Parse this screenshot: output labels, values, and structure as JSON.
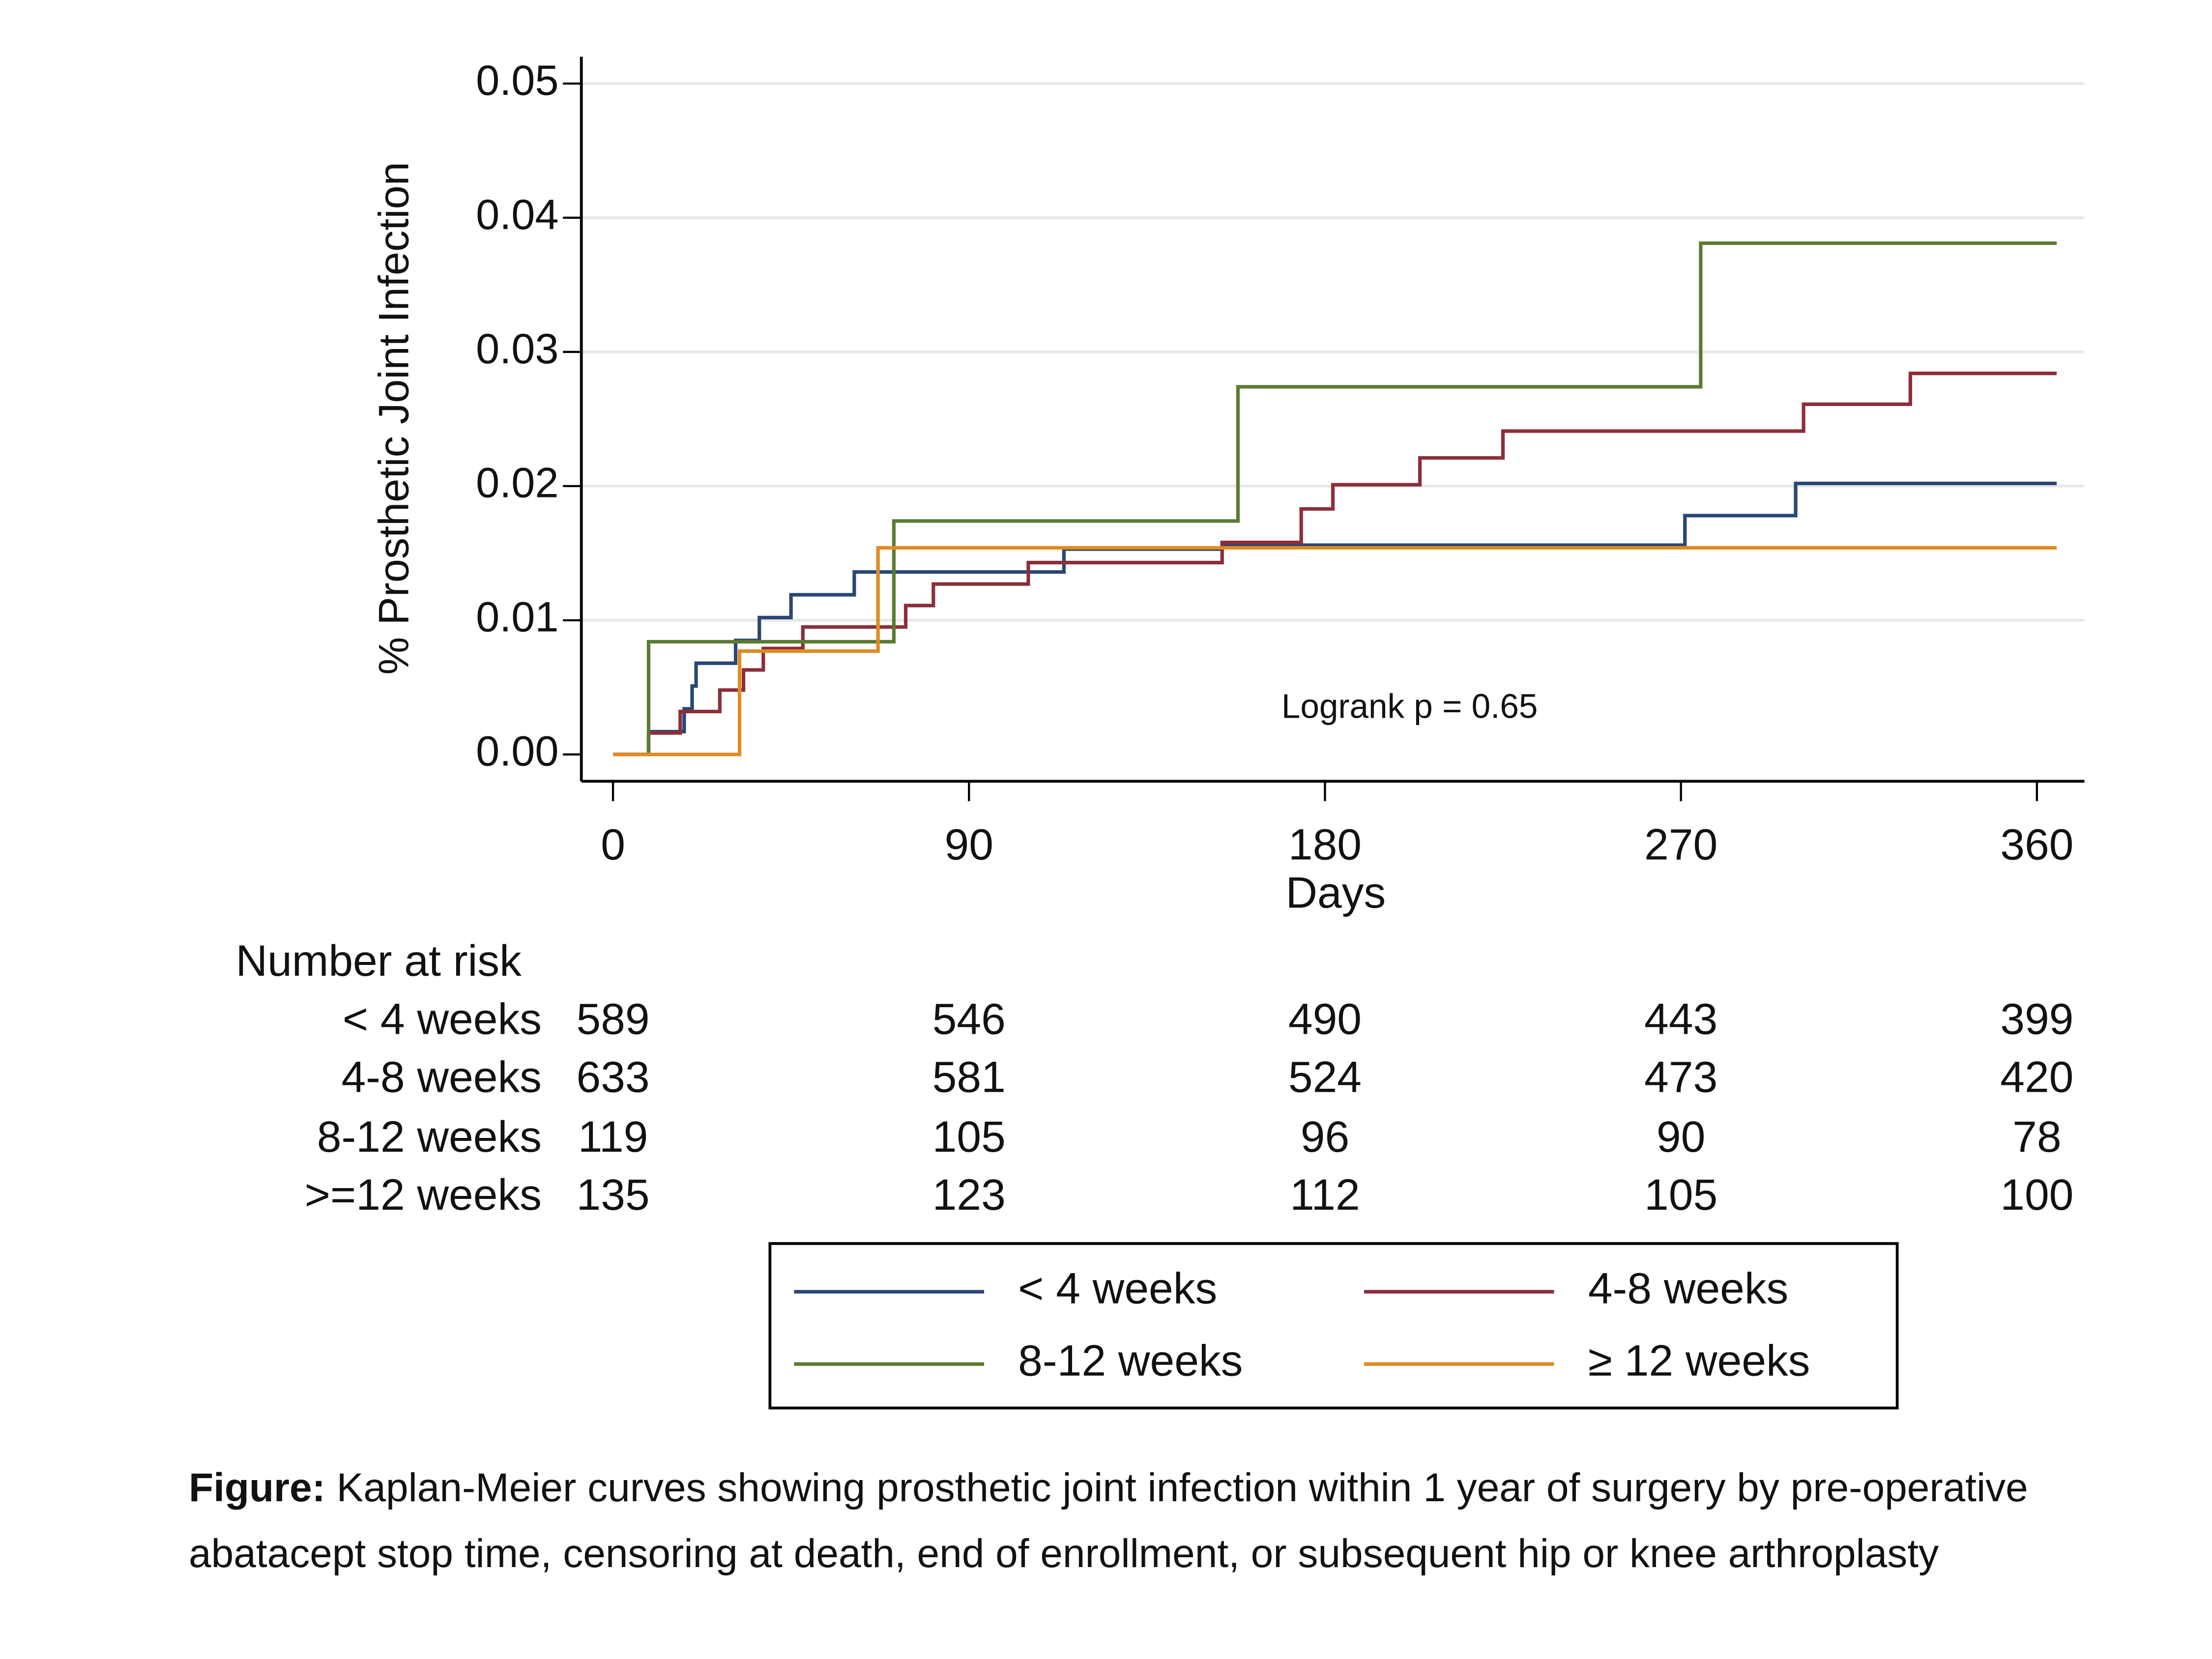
{
  "chart_data": {
    "type": "step",
    "xlabel": "Days",
    "ylabel": "% Prosthetic Joint Infection",
    "annotation": "Logrank p = 0.65",
    "annotation_at": [
      169,
      0.0034
    ],
    "xlim": [
      -8,
      372
    ],
    "ylim": [
      -0.002,
      0.052
    ],
    "xticks": [
      0,
      90,
      180,
      270,
      360
    ],
    "yticks": [
      {
        "value": 0,
        "label": "0.00"
      },
      {
        "value": 0.01,
        "label": "0.01"
      },
      {
        "value": 0.02,
        "label": "0.02"
      },
      {
        "value": 0.03,
        "label": "0.03"
      },
      {
        "value": 0.04,
        "label": "0.04"
      },
      {
        "value": 0.05,
        "label": "0.05"
      }
    ],
    "grid": true,
    "series": [
      {
        "name": "< 4 weeks",
        "color": "#2a4674",
        "x": [
          0,
          9,
          18,
          20,
          21,
          31,
          37,
          45,
          61,
          114,
          154,
          271,
          299,
          365
        ],
        "values": [
          0,
          0.0017,
          0.0034,
          0.0051,
          0.0068,
          0.0085,
          0.0102,
          0.0119,
          0.0136,
          0.0153,
          0.0156,
          0.0178,
          0.0202,
          0.0202
        ]
      },
      {
        "name": "4-8 weeks",
        "color": "#8b2e3a",
        "x": [
          0,
          9,
          17,
          27,
          33,
          38,
          48,
          74,
          81,
          105,
          154,
          174,
          182,
          204,
          225,
          301,
          328,
          365
        ],
        "values": [
          0,
          0.0016,
          0.0032,
          0.0048,
          0.0063,
          0.0079,
          0.0095,
          0.0111,
          0.0127,
          0.0143,
          0.0158,
          0.0183,
          0.0201,
          0.0221,
          0.0241,
          0.0261,
          0.0284,
          0.0284
        ]
      },
      {
        "name": "8-12 weeks",
        "color": "#5b7a31",
        "x": [
          0,
          9,
          71,
          158,
          275,
          365
        ],
        "values": [
          0,
          0.0084,
          0.0174,
          0.0274,
          0.0381,
          0.0381
        ]
      },
      {
        "name": "≥ 12 weeks",
        "color": "#e08b22",
        "x": [
          0,
          32,
          67,
          365
        ],
        "values": [
          0,
          0.0077,
          0.0154,
          0.0154
        ]
      }
    ],
    "risk_table": {
      "title": "Number at risk",
      "rows": [
        {
          "label": "< 4 weeks",
          "values": [
            589,
            546,
            490,
            443,
            399
          ]
        },
        {
          "label": "4-8 weeks",
          "values": [
            633,
            581,
            524,
            473,
            420
          ]
        },
        {
          "label": "8-12 weeks",
          "values": [
            119,
            105,
            96,
            90,
            78
          ]
        },
        {
          "label": ">=12 weeks",
          "values": [
            135,
            123,
            112,
            105,
            100
          ]
        }
      ]
    },
    "caption": {
      "label": "Figure:",
      "text": "Kaplan-Meier curves showing prosthetic joint infection within 1 year of surgery by pre-operative abatacept stop time, censoring at death, end of enrollment, or subsequent hip or knee arthroplasty"
    }
  }
}
